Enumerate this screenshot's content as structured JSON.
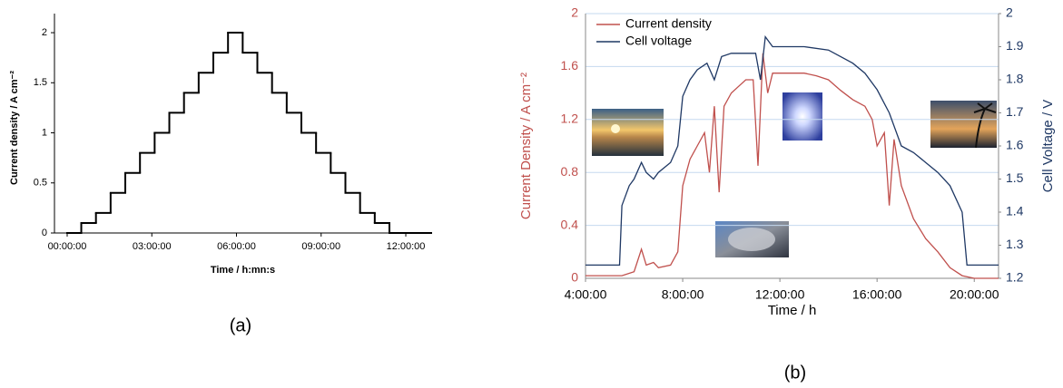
{
  "chart_data": [
    {
      "type": "step",
      "x_label": "Time / h:mn:s",
      "y_label": "Current density  / A cm⁻²",
      "caption": "(a)",
      "x": [
        0,
        0.5,
        1.02,
        1.54,
        2.06,
        2.58,
        3.1,
        3.62,
        4.14,
        4.66,
        5.18,
        5.7,
        6.22,
        6.74,
        7.26,
        7.78,
        8.3,
        8.82,
        9.34,
        9.86,
        10.38,
        10.9,
        11.42
      ],
      "values": [
        0,
        0.1,
        0.2,
        0.4,
        0.6,
        0.8,
        1.0,
        1.2,
        1.4,
        1.6,
        1.8,
        2.0,
        1.8,
        1.6,
        1.4,
        1.2,
        1.0,
        0.8,
        0.6,
        0.4,
        0.2,
        0.1,
        0
      ],
      "color": "#000000",
      "xlim": [
        -0.45,
        12.9
      ],
      "xticks": [
        {
          "value": 0,
          "label": "00:00:00"
        },
        {
          "value": 3,
          "label": "03:00:00"
        },
        {
          "value": 6,
          "label": "06:00:00"
        },
        {
          "value": 9,
          "label": "09:00:00"
        },
        {
          "value": 12,
          "label": "12:00:00"
        }
      ],
      "ylim": [
        0,
        2.1
      ],
      "yticks": [
        0,
        0.5,
        1,
        1.5,
        2
      ],
      "grid": false
    },
    {
      "type": "line",
      "x_label": "Time / h",
      "y_label": "Current Density / A cm⁻²",
      "y2_label": "Cell Voltage / V",
      "caption": "(b)",
      "x_current": [
        4,
        5,
        5.5,
        6,
        6.3,
        6.5,
        6.8,
        7,
        7.5,
        7.8,
        8,
        8.3,
        8.6,
        8.9,
        9.1,
        9.3,
        9.5,
        9.7,
        10,
        10.3,
        10.6,
        10.9,
        11.1,
        11.3,
        11.5,
        11.7,
        12,
        13,
        13.5,
        14,
        14.5,
        15,
        15.5,
        15.8,
        16,
        16.3,
        16.5,
        16.7,
        17,
        17.5,
        18,
        18.5,
        19,
        19.5,
        20,
        21
      ],
      "x_voltage": [
        4,
        5.4,
        5.5,
        5.8,
        6,
        6.3,
        6.5,
        6.8,
        7,
        7.5,
        7.8,
        8,
        8.3,
        8.6,
        9,
        9.3,
        9.6,
        10,
        10.5,
        11,
        11.2,
        11.4,
        11.7,
        12,
        13,
        14,
        14.5,
        15,
        15.5,
        16,
        16.5,
        17,
        17.5,
        18,
        18.5,
        19,
        19.5,
        19.7,
        21
      ],
      "series": [
        {
          "name": "Current density",
          "color": "#c0504d",
          "axis": "y",
          "values": [
            0.02,
            0.02,
            0.02,
            0.05,
            0.22,
            0.1,
            0.12,
            0.08,
            0.1,
            0.2,
            0.7,
            0.9,
            1.0,
            1.1,
            0.8,
            1.3,
            0.65,
            1.3,
            1.4,
            1.45,
            1.5,
            1.5,
            0.85,
            1.7,
            1.4,
            1.55,
            1.55,
            1.55,
            1.53,
            1.5,
            1.42,
            1.35,
            1.3,
            1.2,
            1.0,
            1.1,
            0.55,
            1.05,
            0.7,
            0.45,
            0.3,
            0.2,
            0.08,
            0.02,
            0,
            0
          ]
        },
        {
          "name": "Cell voltage",
          "color": "#1f3864",
          "axis": "y2",
          "values": [
            1.24,
            1.24,
            1.42,
            1.48,
            1.5,
            1.55,
            1.52,
            1.5,
            1.52,
            1.55,
            1.6,
            1.75,
            1.8,
            1.83,
            1.85,
            1.8,
            1.87,
            1.88,
            1.88,
            1.88,
            1.8,
            1.93,
            1.9,
            1.9,
            1.9,
            1.89,
            1.87,
            1.85,
            1.82,
            1.77,
            1.7,
            1.6,
            1.58,
            1.55,
            1.52,
            1.48,
            1.4,
            1.24,
            1.24
          ]
        }
      ],
      "xlim": [
        4,
        21
      ],
      "xticks": [
        {
          "value": 4,
          "label": "4:00:00"
        },
        {
          "value": 8,
          "label": "8:00:00"
        },
        {
          "value": 12,
          "label": "12:00:00"
        },
        {
          "value": 16,
          "label": "16:00:00"
        },
        {
          "value": 20,
          "label": "20:00:00"
        }
      ],
      "ylim": [
        0,
        2
      ],
      "yticks": [
        0,
        0.4,
        0.8,
        1.2,
        1.6,
        2
      ],
      "y2lim": [
        1.2,
        2
      ],
      "y2ticks": [
        1.2,
        1.3,
        1.4,
        1.5,
        1.6,
        1.7,
        1.8,
        1.9,
        2
      ],
      "grid": true,
      "legend": "upper left"
    }
  ]
}
